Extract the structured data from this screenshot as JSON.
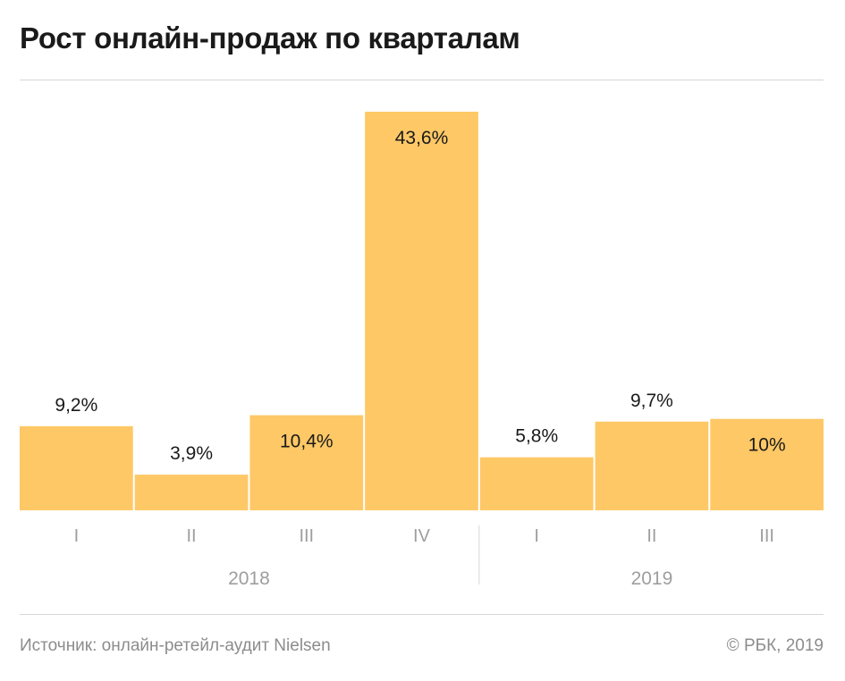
{
  "header": {
    "title": "Рост онлайн-продаж по кварталам"
  },
  "footer": {
    "source": "Источник: онлайн-ретейл-аудит Nielsen",
    "copyright": "© РБК, 2019"
  },
  "colors": {
    "bar": "#fec866",
    "value_label": "#1a1a1a",
    "axis_label": "#9e9e9e",
    "divider": "#d6d6d6"
  },
  "chart_data": {
    "type": "bar",
    "title": "Рост онлайн-продаж по кварталам",
    "xlabel": "",
    "ylabel": "",
    "ylim": [
      0,
      43.6
    ],
    "grid": false,
    "legend": "none",
    "groups": [
      "2018",
      "2019"
    ],
    "categories": [
      "I",
      "II",
      "III",
      "IV",
      "I",
      "II",
      "III"
    ],
    "category_groups": [
      "2018",
      "2018",
      "2018",
      "2018",
      "2019",
      "2019",
      "2019"
    ],
    "values": [
      9.2,
      3.9,
      10.4,
      43.6,
      5.8,
      9.7,
      10
    ],
    "value_labels": [
      "9,2%",
      "3,9%",
      "10,4%",
      "43,6%",
      "5,8%",
      "9,7%",
      "10%"
    ]
  }
}
